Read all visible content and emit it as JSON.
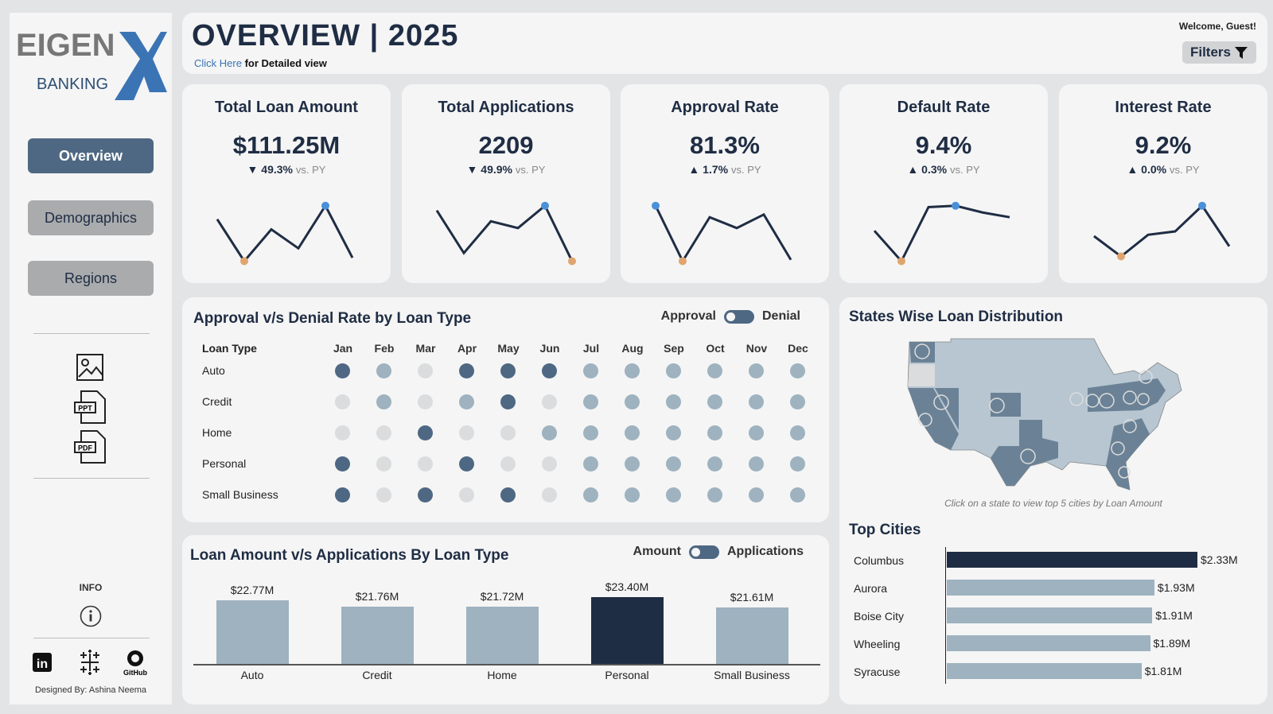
{
  "brand": {
    "logo_text": "EIGEN",
    "logo_x": "X",
    "logo_sub": "BANKING"
  },
  "sidebar": {
    "nav": [
      {
        "label": "Overview",
        "active": true
      },
      {
        "label": "Demographics",
        "active": false
      },
      {
        "label": "Regions",
        "active": false
      }
    ],
    "export_icons": [
      "image-icon",
      "ppt-icon",
      "pdf-icon"
    ],
    "ppt": "PPT",
    "pdf": "PDF",
    "info_label": "INFO",
    "social": [
      "linkedin-icon",
      "tableau-icon",
      "github-icon"
    ],
    "github_label": "GitHub",
    "credit": "Designed By: Ashina Neema"
  },
  "header": {
    "title": "OVERVIEW | 2025",
    "link": "Click Here",
    "link_rest": " for Detailed view",
    "welcome": "Welcome, Guest!",
    "filters": "Filters"
  },
  "kpis": [
    {
      "title": "Total Loan Amount",
      "value": "$111.25M",
      "dir": "down",
      "change": "49.3%",
      "vs": "vs. PY",
      "trend": [
        65,
        3,
        50,
        22,
        85,
        8
      ],
      "max_idx": 4,
      "min_idx": 1
    },
    {
      "title": "Total Applications",
      "value": "2209",
      "dir": "down",
      "change": "49.9%",
      "vs": "vs. PY",
      "trend": [
        78,
        15,
        62,
        52,
        85,
        3
      ],
      "max_idx": 4,
      "min_idx": 5
    },
    {
      "title": "Approval Rate",
      "value": "81.3%",
      "dir": "up",
      "change": "1.7%",
      "vs": "vs. PY",
      "trend": [
        85,
        3,
        68,
        52,
        72,
        5
      ],
      "max_idx": 0,
      "min_idx": 1
    },
    {
      "title": "Default Rate",
      "value": "9.4%",
      "dir": "up",
      "change": "0.3%",
      "vs": "vs. PY",
      "trend": [
        48,
        3,
        83,
        85,
        75,
        68
      ],
      "max_idx": 3,
      "min_idx": 1
    },
    {
      "title": "Interest Rate",
      "value": "9.2%",
      "dir": "up",
      "change": "0.0%",
      "vs": "vs. PY",
      "trend": [
        40,
        10,
        42,
        47,
        85,
        25
      ],
      "max_idx": 4,
      "min_idx": 1
    }
  ],
  "approval": {
    "title": "Approval v/s Denial Rate by Loan Type",
    "toggle_left": "Approval",
    "toggle_right": "Denial",
    "row_header": "Loan Type",
    "months": [
      "Jan",
      "Feb",
      "Mar",
      "Apr",
      "May",
      "Jun",
      "Jul",
      "Aug",
      "Sep",
      "Oct",
      "Nov",
      "Dec"
    ],
    "rows": [
      {
        "label": "Auto",
        "levels": [
          "high",
          "mid",
          "low",
          "high",
          "high",
          "high",
          "mid",
          "mid",
          "mid",
          "mid",
          "mid",
          "mid"
        ]
      },
      {
        "label": "Credit",
        "levels": [
          "low",
          "mid",
          "low",
          "mid",
          "high",
          "low",
          "mid",
          "mid",
          "mid",
          "mid",
          "mid",
          "mid"
        ]
      },
      {
        "label": "Home",
        "levels": [
          "low",
          "low",
          "high",
          "low",
          "low",
          "mid",
          "mid",
          "mid",
          "mid",
          "mid",
          "mid",
          "mid"
        ]
      },
      {
        "label": "Personal",
        "levels": [
          "high",
          "low",
          "low",
          "high",
          "low",
          "low",
          "mid",
          "mid",
          "mid",
          "mid",
          "mid",
          "mid"
        ]
      },
      {
        "label": "Small Business",
        "levels": [
          "high",
          "low",
          "high",
          "low",
          "high",
          "low",
          "mid",
          "mid",
          "mid",
          "mid",
          "mid",
          "mid"
        ]
      }
    ],
    "colors": {
      "high": "#4e6883",
      "mid": "#9eb2bf",
      "low": "#dadcde"
    }
  },
  "chart_data": [
    {
      "type": "bar",
      "title": "Loan Amount v/s Applications By Loan Type",
      "toggle_left": "Amount",
      "toggle_right": "Applications",
      "categories": [
        "Auto",
        "Credit",
        "Home",
        "Personal",
        "Small Business"
      ],
      "values": [
        22.77,
        21.76,
        21.72,
        23.4,
        21.61
      ],
      "labels": [
        "$22.77M",
        "$21.76M",
        "$21.72M",
        "$23.40M",
        "$21.61M"
      ],
      "highlight": "Personal",
      "unit": "$M"
    },
    {
      "type": "bar",
      "orientation": "horizontal",
      "title": "Top Cities",
      "categories": [
        "Columbus",
        "Aurora",
        "Boise City",
        "Wheeling",
        "Syracuse"
      ],
      "values": [
        2.33,
        1.93,
        1.91,
        1.89,
        1.81
      ],
      "labels": [
        "$2.33M",
        "$1.93M",
        "$1.91M",
        "$1.89M",
        "$1.81M"
      ],
      "highlight": "Columbus"
    }
  ],
  "map": {
    "title": "States Wise Loan Distribution",
    "hint": "Click on a state to view top 5 cities by Loan Amount"
  },
  "colors": {
    "navy": "#1f2d44",
    "bar": "#9eb2bf",
    "accent_max": "#4a90d9",
    "accent_min": "#e0a56f"
  }
}
